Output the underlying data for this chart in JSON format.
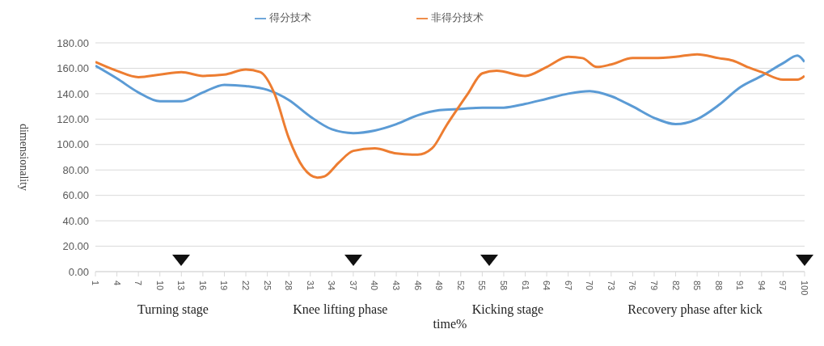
{
  "chart_data": {
    "type": "line",
    "xlabel": "time%",
    "ylabel": "dimensionality",
    "series": [
      {
        "name": "得分技术",
        "color": "#5b9bd5",
        "x": [
          1,
          4,
          7,
          10,
          13,
          16,
          19,
          22,
          25,
          28,
          31,
          34,
          37,
          40,
          43,
          46,
          49,
          52,
          55,
          58,
          61,
          64,
          67,
          70,
          73,
          76,
          79,
          82,
          85,
          88,
          91,
          94,
          97,
          99,
          100
        ],
        "values": [
          162,
          152,
          141,
          134,
          134,
          141,
          147,
          146,
          143,
          135,
          122,
          112,
          109,
          111,
          116,
          123,
          127,
          128,
          129,
          129,
          132,
          136,
          140,
          142,
          138,
          130,
          121,
          116,
          120,
          131,
          145,
          154,
          164,
          170,
          165
        ]
      },
      {
        "name": "非得分技术",
        "color": "#ed7d31",
        "x": [
          1,
          4,
          7,
          10,
          13,
          16,
          19,
          22,
          24,
          26,
          28,
          30,
          32,
          33,
          35,
          37,
          40,
          43,
          46,
          48,
          50,
          53,
          55,
          57,
          61,
          64,
          67,
          69,
          71,
          73,
          76,
          79,
          82,
          85,
          88,
          90,
          92,
          94,
          97,
          99,
          100
        ],
        "values": [
          165,
          158,
          153,
          155,
          157,
          154,
          155,
          159,
          157,
          140,
          105,
          82,
          74,
          75,
          86,
          95,
          97,
          93,
          92,
          97,
          115,
          140,
          156,
          158,
          154,
          161,
          169,
          168,
          161,
          163,
          168,
          168,
          169,
          171,
          168,
          166,
          161,
          157,
          151,
          151,
          154
        ]
      }
    ],
    "xlim": [
      1,
      100
    ],
    "xticks": [
      1,
      4,
      7,
      10,
      13,
      16,
      19,
      22,
      25,
      28,
      31,
      34,
      37,
      40,
      43,
      46,
      49,
      52,
      55,
      58,
      61,
      64,
      67,
      70,
      73,
      76,
      79,
      82,
      85,
      88,
      91,
      94,
      97,
      100
    ],
    "ylim": [
      0,
      180
    ],
    "yticks": [
      {
        "value": 0,
        "label": "0.00"
      },
      {
        "value": 20,
        "label": "20.00"
      },
      {
        "value": 40,
        "label": "40.00"
      },
      {
        "value": 60,
        "label": "60.00"
      },
      {
        "value": 80,
        "label": "80.00"
      },
      {
        "value": 100,
        "label": "100.00"
      },
      {
        "value": 120,
        "label": "120.00"
      },
      {
        "value": 140,
        "label": "140.00"
      },
      {
        "value": 160,
        "label": "160.00"
      },
      {
        "value": 180,
        "label": "180.00"
      }
    ],
    "grid": "y",
    "legend": "top",
    "marker": "none",
    "line_style": "solid",
    "annotations": [
      "Turning stage",
      "Knee lifting phase",
      "Kicking stage",
      "Recovery phase after kick"
    ]
  }
}
